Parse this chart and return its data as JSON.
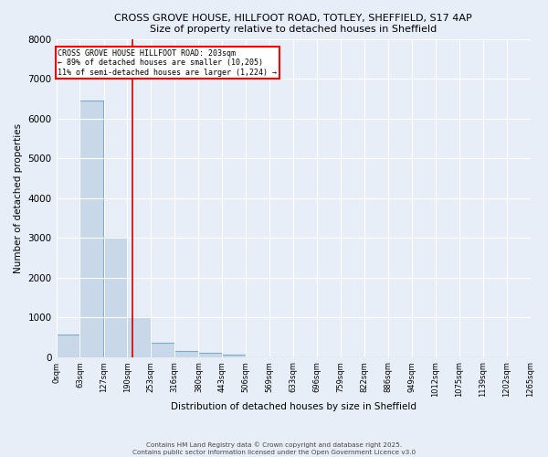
{
  "title_line1": "CROSS GROVE HOUSE, HILLFOOT ROAD, TOTLEY, SHEFFIELD, S17 4AP",
  "title_line2": "Size of property relative to detached houses in Sheffield",
  "xlabel": "Distribution of detached houses by size in Sheffield",
  "ylabel": "Number of detached properties",
  "bar_color": "#c8d8e8",
  "bar_edge_color": "#7aaac8",
  "background_color": "#e8eef8",
  "grid_color": "#ffffff",
  "annotation_line_color": "#cc0000",
  "annotation_property": 203,
  "annotation_text_line1": "CROSS GROVE HOUSE HILLFOOT ROAD: 203sqm",
  "annotation_text_line2": "← 89% of detached houses are smaller (10,205)",
  "annotation_text_line3": "11% of semi-detached houses are larger (1,224) →",
  "footer_line1": "Contains HM Land Registry data © Crown copyright and database right 2025.",
  "footer_line2": "Contains public sector information licensed under the Open Government Licence v3.0",
  "bin_edges": [
    0,
    63,
    127,
    190,
    253,
    316,
    380,
    443,
    506,
    569,
    633,
    696,
    759,
    822,
    886,
    949,
    1012,
    1075,
    1139,
    1202,
    1265
  ],
  "bin_labels": [
    "0sqm",
    "63sqm",
    "127sqm",
    "190sqm",
    "253sqm",
    "316sqm",
    "380sqm",
    "443sqm",
    "506sqm",
    "569sqm",
    "633sqm",
    "696sqm",
    "759sqm",
    "822sqm",
    "886sqm",
    "949sqm",
    "1012sqm",
    "1075sqm",
    "1139sqm",
    "1202sqm",
    "1265sqm"
  ],
  "bar_heights": [
    570,
    6450,
    3000,
    1000,
    350,
    155,
    95,
    60,
    0,
    0,
    0,
    0,
    0,
    0,
    0,
    0,
    0,
    0,
    0,
    0
  ],
  "ylim": [
    0,
    8000
  ],
  "yticks": [
    0,
    1000,
    2000,
    3000,
    4000,
    5000,
    6000,
    7000,
    8000
  ]
}
